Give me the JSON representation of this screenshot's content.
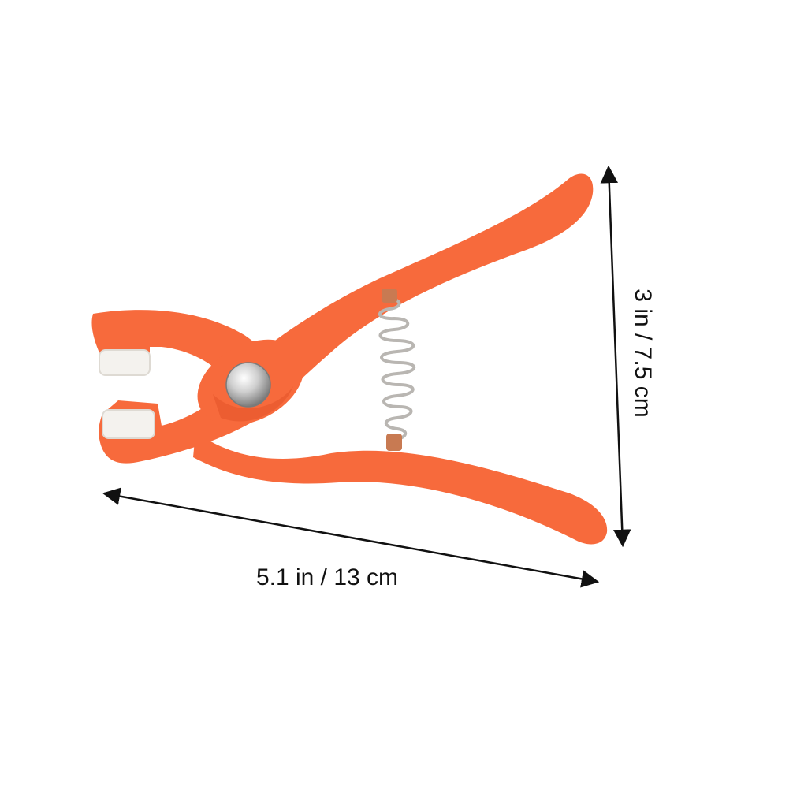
{
  "dimensions": {
    "width_label": "5.1 in / 13 cm",
    "height_label": "3 in / 7.5 cm"
  },
  "colors": {
    "handle": "#f76a3c",
    "handle_shadow": "#e4552a",
    "jaw_pad": "#f4f2ee",
    "spring": "#b9b6b2",
    "rivet": "#c9c9c9",
    "arrow": "#111111"
  },
  "product": {
    "icon": "pliers-icon"
  }
}
